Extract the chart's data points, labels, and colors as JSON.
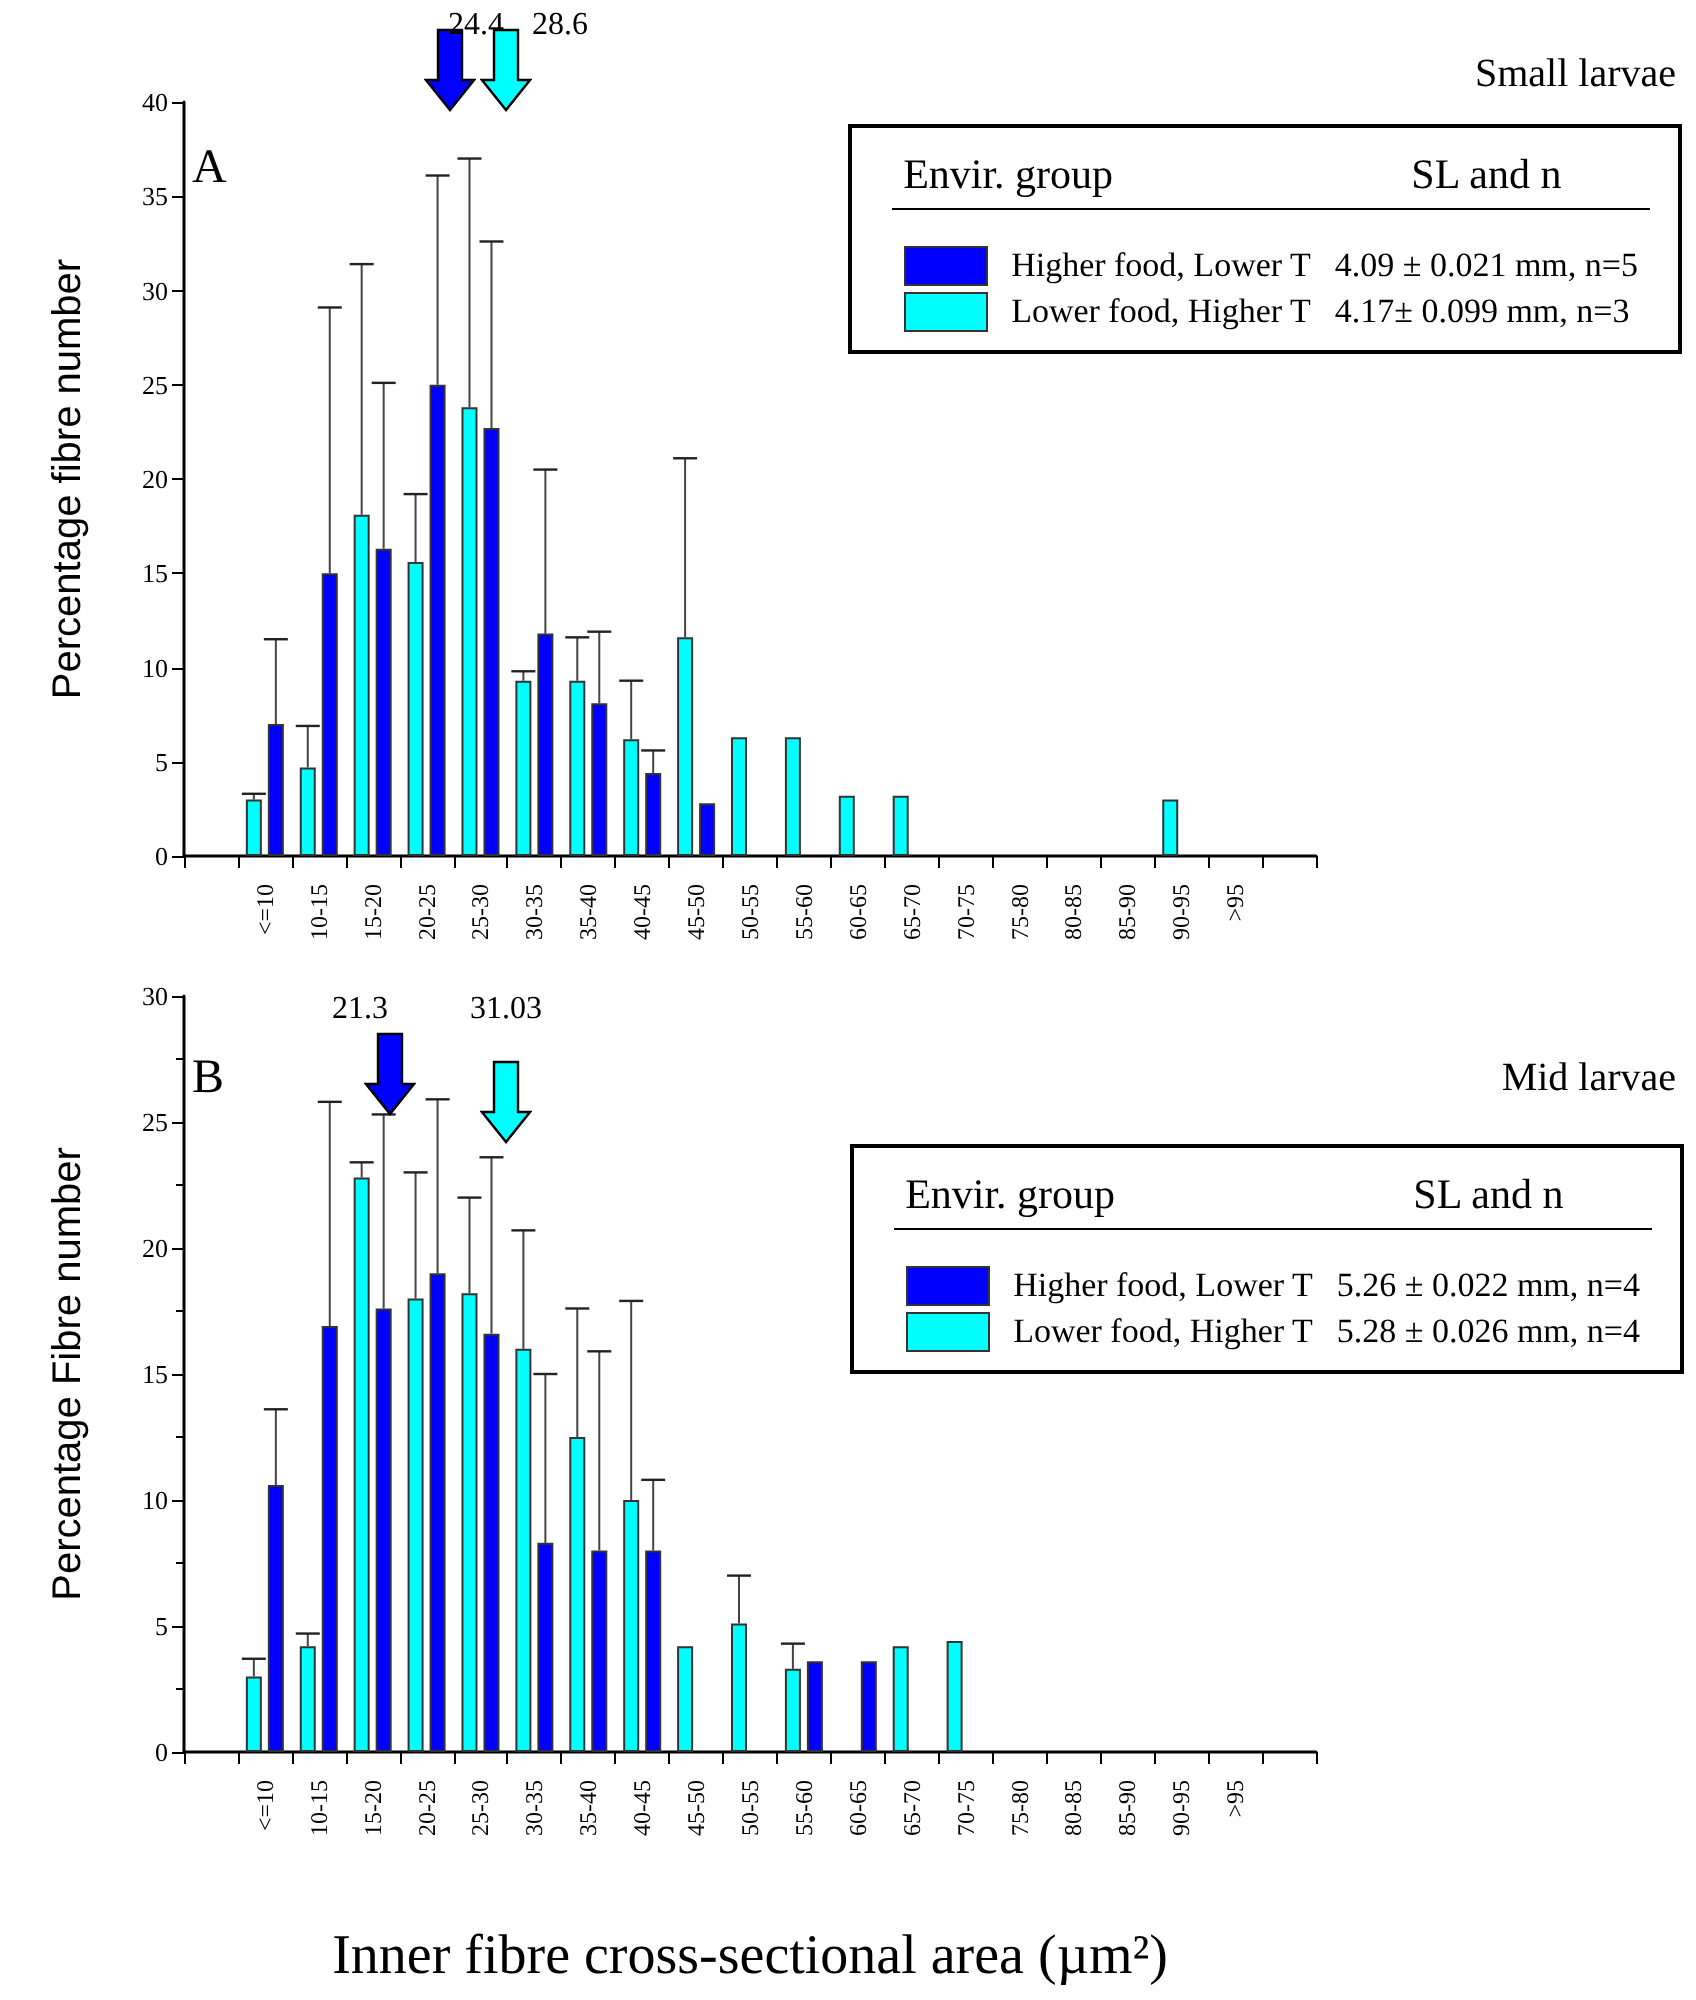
{
  "chart_data": [
    {
      "type": "bar",
      "ylabel": "Percentage fibre number",
      "legend_title": "Envir. group",
      "categories": [
        null,
        "<=10",
        "10-15",
        "15-20",
        "20-25",
        "25-30",
        "30-35",
        "35-40",
        "40-45",
        "45-50",
        "50-55",
        "55-60",
        "60-65",
        "65-70",
        "70-75",
        "75-80",
        "80-85",
        "85-90",
        "90-95",
        ">95",
        null
      ],
      "series": [
        {
          "name": "Higher food, Lower T",
          "color": "#0000ff",
          "values": [
            null,
            7.0,
            15.0,
            16.3,
            25.0,
            22.7,
            11.8,
            8.1,
            4.4,
            2.8,
            null,
            null,
            null,
            null,
            null,
            null,
            null,
            null,
            null,
            null,
            null
          ],
          "errors": [
            null,
            [
              7.0,
              11.5
            ],
            [
              15.0,
              29.1
            ],
            [
              16.3,
              25.1
            ],
            [
              25.0,
              36.1
            ],
            [
              22.7,
              32.6
            ],
            [
              11.8,
              20.5
            ],
            [
              8.1,
              11.9
            ],
            [
              4.4,
              5.6
            ],
            null,
            null,
            null,
            null,
            null,
            null,
            null,
            null,
            null,
            null,
            null,
            null
          ]
        },
        {
          "name": "Lower food, Higher T",
          "color": "#00ffff",
          "values": [
            null,
            3.0,
            4.7,
            18.1,
            15.6,
            23.8,
            9.3,
            9.3,
            6.2,
            11.6,
            6.3,
            6.3,
            3.2,
            3.2,
            null,
            null,
            null,
            null,
            3.0,
            null,
            null
          ],
          "errors": [
            null,
            [
              3.0,
              3.3
            ],
            [
              4.7,
              6.9
            ],
            [
              18.1,
              31.4
            ],
            [
              15.6,
              19.2
            ],
            [
              23.8,
              37.0
            ],
            [
              9.3,
              9.8
            ],
            [
              9.3,
              11.6
            ],
            [
              6.2,
              9.3
            ],
            [
              11.6,
              21.1
            ],
            null,
            null,
            null,
            null,
            null,
            null,
            null,
            null,
            null,
            null,
            null
          ]
        }
      ],
      "ylim": [
        0,
        40
      ],
      "yticks": [
        0,
        5,
        10,
        15,
        20,
        25,
        30,
        35,
        40
      ],
      "grid": false,
      "legend": "top right",
      "annotations": [
        "24.4",
        "28.6",
        "A",
        "Small larvae",
        "SL and n",
        "4.09 ± 0.021 mm, n=5",
        "4.17± 0.099 mm, n=3"
      ]
    },
    {
      "type": "bar",
      "ylabel": "Percentage Fibre number",
      "xlabel": "Inner fibre cross-sectional area (µm²)",
      "legend_title": "Envir. group",
      "categories": [
        null,
        "<=10",
        "10-15",
        "15-20",
        "20-25",
        "25-30",
        "30-35",
        "35-40",
        "40-45",
        "45-50",
        "50-55",
        "55-60",
        "60-65",
        "65-70",
        "70-75",
        "75-80",
        "80-85",
        "85-90",
        "90-95",
        ">95",
        null
      ],
      "series": [
        {
          "name": "Higher food, Lower T",
          "color": "#0000ff",
          "values": [
            null,
            10.6,
            16.9,
            17.6,
            19.0,
            16.6,
            8.3,
            8.0,
            8.0,
            null,
            null,
            3.6,
            3.6,
            null,
            null,
            null,
            null,
            null,
            null,
            null,
            null
          ],
          "errors": [
            null,
            [
              10.6,
              13.6
            ],
            [
              16.9,
              25.8
            ],
            [
              17.6,
              25.3
            ],
            [
              19.0,
              25.9
            ],
            [
              16.6,
              23.6
            ],
            [
              8.3,
              15.0
            ],
            [
              8.0,
              15.9
            ],
            [
              8.0,
              10.8
            ],
            null,
            null,
            null,
            null,
            null,
            null,
            null,
            null,
            null,
            null,
            null,
            null
          ]
        },
        {
          "name": "Lower food, Higher T",
          "color": "#00ffff",
          "values": [
            null,
            3.0,
            4.2,
            22.8,
            18.0,
            18.2,
            16.0,
            12.5,
            10.0,
            4.2,
            5.1,
            3.3,
            null,
            4.2,
            4.4,
            null,
            null,
            null,
            null,
            null,
            null
          ],
          "errors": [
            null,
            [
              3.0,
              3.7
            ],
            [
              4.2,
              4.7
            ],
            [
              22.8,
              23.4
            ],
            [
              18.0,
              23.0
            ],
            [
              18.2,
              22.0
            ],
            [
              16.0,
              20.7
            ],
            [
              12.5,
              17.6
            ],
            [
              10.0,
              17.9
            ],
            null,
            [
              5.1,
              7.0
            ],
            [
              3.3,
              4.3
            ],
            null,
            null,
            null,
            null,
            null,
            null,
            null,
            null,
            null
          ]
        }
      ],
      "ylim": [
        0,
        30
      ],
      "yticks": [
        0,
        5,
        10,
        15,
        20,
        25,
        30
      ],
      "grid": false,
      "legend": "right",
      "annotations": [
        "21.3",
        "31.03",
        "B",
        "Mid larvae",
        "SL and n",
        "5.26 ± 0.022 mm, n=4",
        "5.28 ± 0.026 mm, n=4"
      ]
    }
  ]
}
